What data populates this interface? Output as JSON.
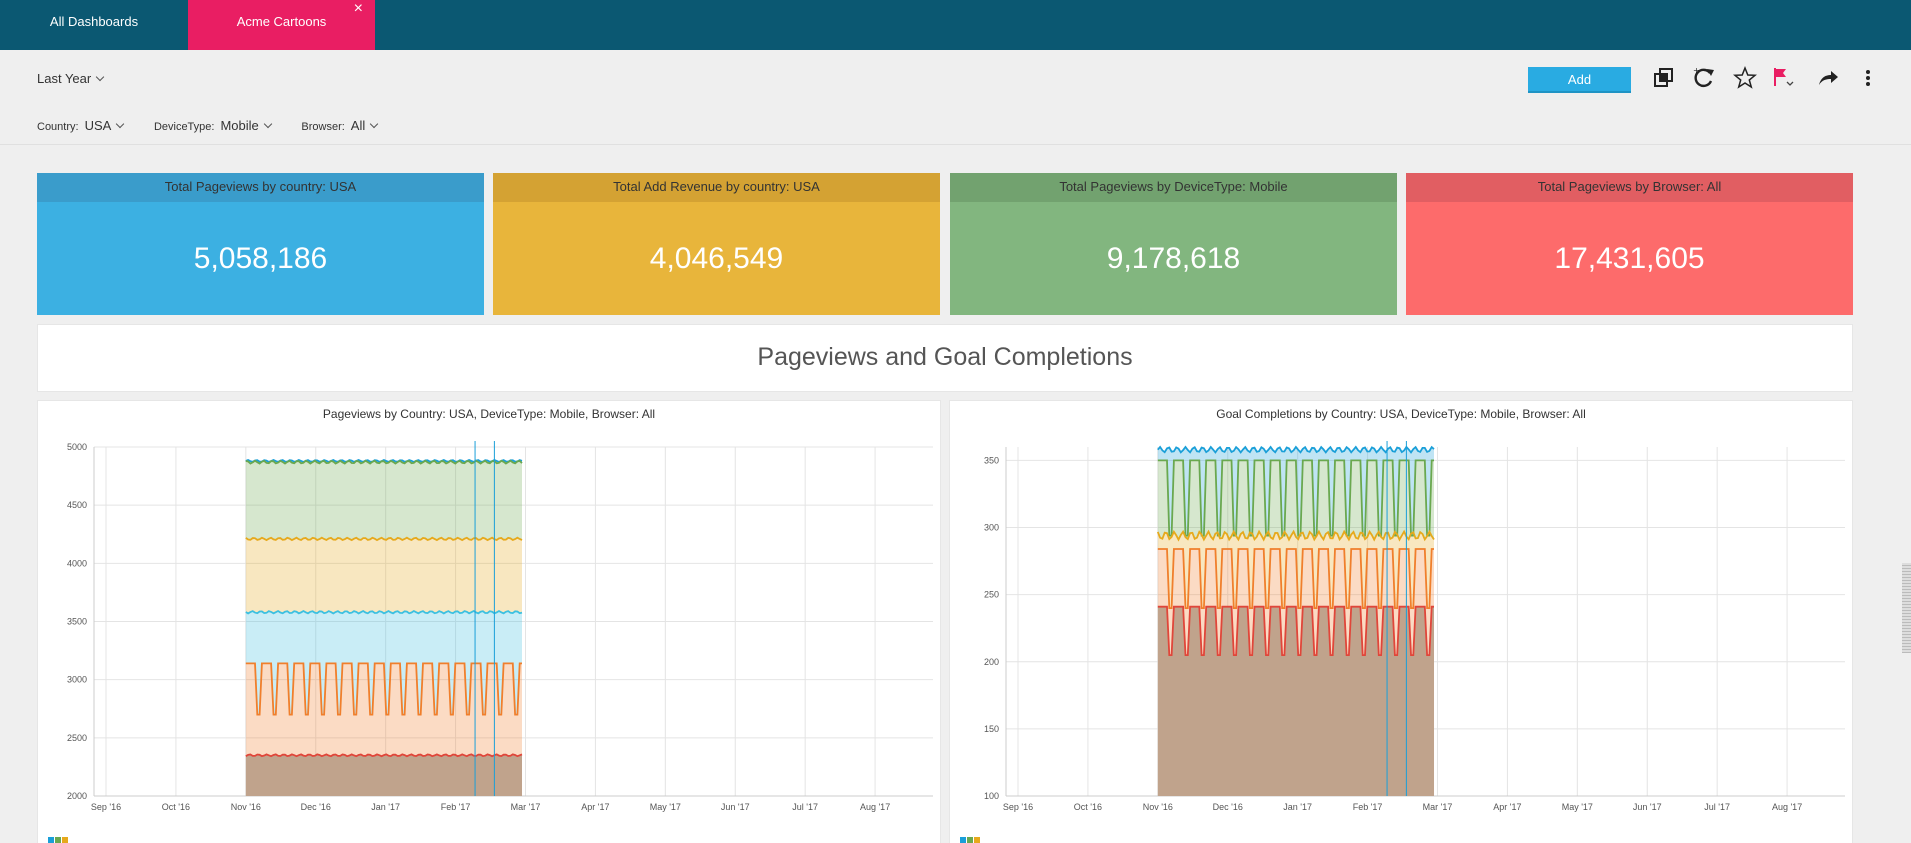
{
  "tabs": [
    {
      "label": "All Dashboards"
    },
    {
      "label": "Acme Cartoons",
      "close": "×"
    }
  ],
  "toolbar": {
    "period": "Last Year",
    "add_label": "Add"
  },
  "filters": [
    {
      "label": "Country:",
      "value": "USA"
    },
    {
      "label": "DeviceType:",
      "value": "Mobile"
    },
    {
      "label": "Browser:",
      "value": "All"
    }
  ],
  "colors": {
    "topbar": "#0b5872",
    "active_tab": "#e91e63",
    "blue": "#3cb0e2",
    "yellow": "#e8b53b",
    "green": "#82b67f",
    "red": "#fd6b6b"
  },
  "kpis": [
    {
      "title": "Total Pageviews by country: USA",
      "value": "5,058,186"
    },
    {
      "title": "Total Add Revenue by country: USA",
      "value": "4,046,549"
    },
    {
      "title": "Total Pageviews by DeviceType: Mobile",
      "value": "9,178,618"
    },
    {
      "title": "Total Pageviews by Browser: All",
      "value": "17,431,605"
    }
  ],
  "section_title": "Pageviews and Goal Completions",
  "chart_data": [
    {
      "type": "area",
      "title": "Pageviews by Country: USA, DeviceType: Mobile, Browser: All",
      "x_ticks": [
        "Sep '16",
        "Oct '16",
        "Nov '16",
        "Dec '16",
        "Jan '17",
        "Feb '17",
        "Mar '17",
        "Apr '17",
        "May '17",
        "Jun '17",
        "Jul '17",
        "Aug '17"
      ],
      "y_ticks": [
        "5000",
        "4500",
        "4000",
        "3500",
        "3000",
        "2500",
        "2000"
      ],
      "ylim": [
        2000,
        5000
      ],
      "data_range_months": [
        2.0,
        5.95
      ],
      "series": [
        {
          "name": "blue",
          "color": "#1a9fd8",
          "mean": 4880,
          "amp": 8
        },
        {
          "name": "green",
          "color": "#6aa84f",
          "mean": 4870,
          "amp": 12
        },
        {
          "name": "yellow",
          "color": "#e6a91c",
          "mean": 4210,
          "amp": 10
        },
        {
          "name": "cyan",
          "color": "#3cc0e0",
          "mean": 3580,
          "amp": 10
        },
        {
          "name": "orange",
          "color": "#f07f2c",
          "mean": 2920,
          "amp": 220
        },
        {
          "name": "red",
          "color": "#e0463a",
          "mean": 2350,
          "amp": 8
        }
      ]
    },
    {
      "type": "area",
      "title": "Goal Completions by Country: USA, DeviceType: Mobile, Browser: All",
      "x_ticks": [
        "Sep '16",
        "Oct '16",
        "Nov '16",
        "Dec '16",
        "Jan '17",
        "Feb '17",
        "Mar '17",
        "Apr '17",
        "May '17",
        "Jun '17",
        "Jul '17",
        "Aug '17"
      ],
      "y_ticks": [
        "350",
        "300",
        "250",
        "200",
        "150",
        "100"
      ],
      "ylim": [
        100,
        360
      ],
      "data_range_months": [
        2.0,
        5.95
      ],
      "series": [
        {
          "name": "blue",
          "color": "#1a9fd8",
          "mean": 358,
          "amp": 2
        },
        {
          "name": "green",
          "color": "#6aa84f",
          "mean": 322,
          "amp": 28
        },
        {
          "name": "yellow",
          "color": "#e6a91c",
          "mean": 294,
          "amp": 3
        },
        {
          "name": "orange",
          "color": "#f07f2c",
          "mean": 262,
          "amp": 22
        },
        {
          "name": "red",
          "color": "#e0463a",
          "mean": 223,
          "amp": 18
        }
      ]
    }
  ]
}
